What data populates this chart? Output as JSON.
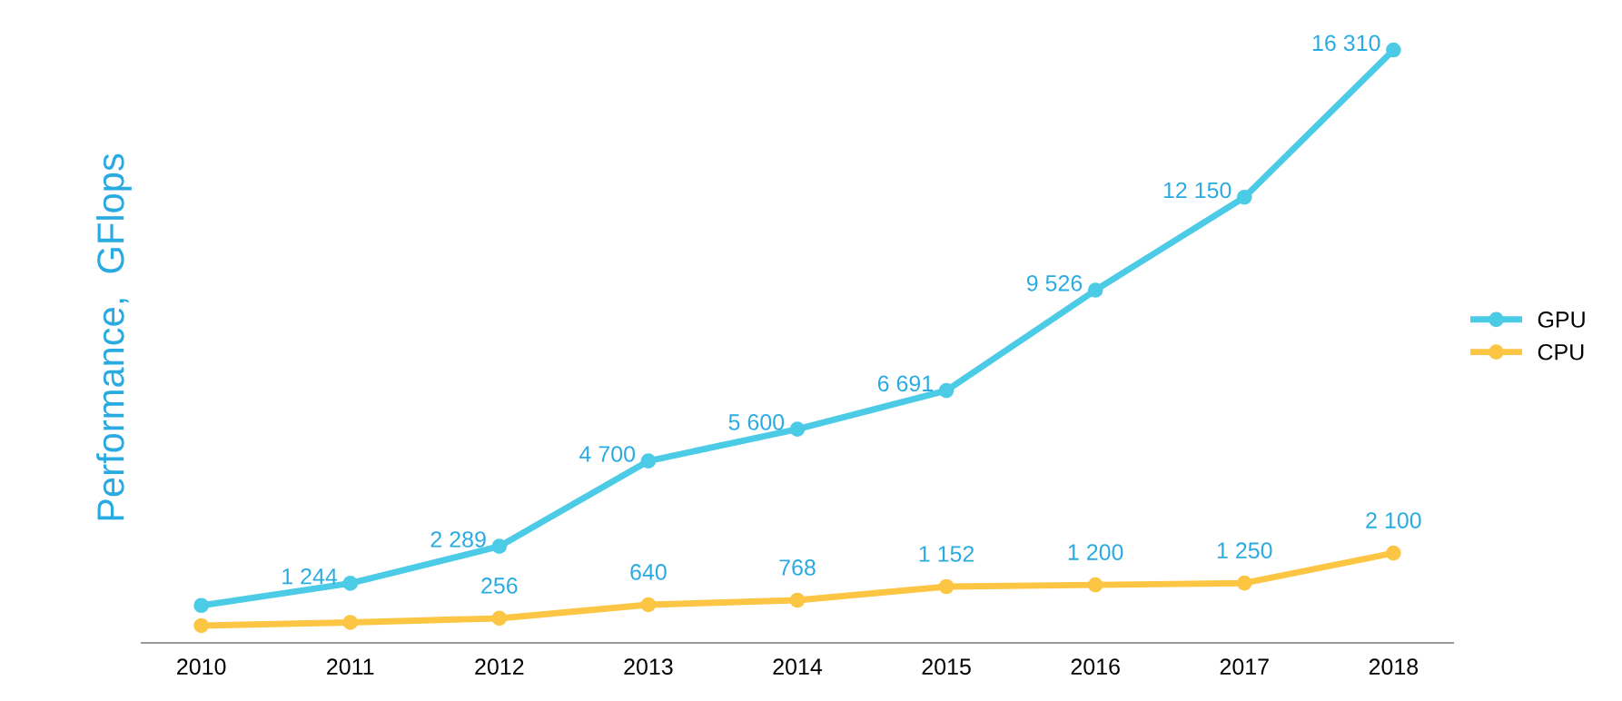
{
  "chart_data": {
    "type": "line",
    "ylabel": "Performance,  GFlops",
    "categories": [
      "2010",
      "2011",
      "2012",
      "2013",
      "2014",
      "2015",
      "2016",
      "2017",
      "2018"
    ],
    "series": [
      {
        "name": "GPU",
        "color": "#4ccbe6",
        "values": [
          620,
          1244,
          2289,
          4700,
          5600,
          6691,
          9526,
          12150,
          16310
        ],
        "value_labels": [
          null,
          "1 244",
          "2 289",
          "4 700",
          "5 600",
          "6 691",
          "9 526",
          "12 150",
          "16 310"
        ]
      },
      {
        "name": "CPU",
        "color": "#fcc644",
        "values": [
          50,
          140,
          256,
          640,
          768,
          1152,
          1200,
          1250,
          2100
        ],
        "value_labels": [
          null,
          null,
          "256",
          "640",
          "768",
          "1 152",
          "1 200",
          "1 250",
          "2 100"
        ]
      }
    ],
    "marker": "circle",
    "legend": "right",
    "grid": false
  }
}
